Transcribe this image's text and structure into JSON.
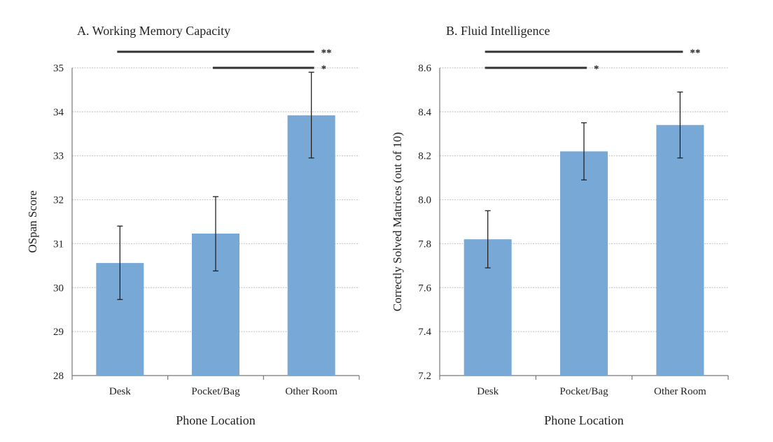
{
  "chart_data": [
    {
      "type": "bar",
      "title": "A. Working Memory Capacity",
      "xlabel": "Phone Location",
      "ylabel": "OSpan Score",
      "ylim": [
        28,
        35
      ],
      "yticks": [
        28,
        29,
        30,
        31,
        32,
        33,
        34,
        35
      ],
      "ytick_labels": [
        "28",
        "29",
        "30",
        "31",
        "32",
        "33",
        "34",
        "35"
      ],
      "categories": [
        "Desk",
        "Pocket/Bag",
        "Other Room"
      ],
      "values": [
        30.56,
        31.23,
        33.92
      ],
      "error_low": [
        29.73,
        30.38,
        32.95
      ],
      "error_high": [
        31.4,
        32.07,
        34.9
      ],
      "color": "#77a8d6",
      "grid": true,
      "significance": [
        {
          "from": 0,
          "to": 2,
          "label": "**"
        },
        {
          "from": 1,
          "to": 2,
          "label": "*"
        }
      ]
    },
    {
      "type": "bar",
      "title": "B. Fluid Intelligence",
      "xlabel": "Phone Location",
      "ylabel": "Correctly Solved Matrices (out of 10)",
      "ylim": [
        7.2,
        8.6
      ],
      "yticks": [
        7.2,
        7.4,
        7.6,
        7.8,
        8.0,
        8.2,
        8.4,
        8.6
      ],
      "ytick_labels": [
        "7.2",
        "7.4",
        "7.6",
        "7.8",
        "8.0",
        "8.2",
        "8.4",
        "8.6"
      ],
      "categories": [
        "Desk",
        "Pocket/Bag",
        "Other Room"
      ],
      "values": [
        7.82,
        8.22,
        8.34
      ],
      "error_low": [
        7.69,
        8.09,
        8.19
      ],
      "error_high": [
        7.95,
        8.35,
        8.49
      ],
      "color": "#77a8d6",
      "grid": true,
      "significance": [
        {
          "from": 0,
          "to": 2,
          "label": "**"
        },
        {
          "from": 0,
          "to": 1,
          "label": "*"
        }
      ]
    }
  ]
}
